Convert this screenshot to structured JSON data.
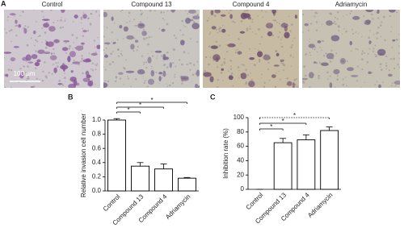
{
  "panel_labels": [
    "A",
    "B",
    "C"
  ],
  "micrographs": {
    "labels": [
      "Control",
      "Compound 13",
      "Compound 4",
      "Adriamycin"
    ],
    "scale_bar": "100 μm"
  },
  "chart_data": [
    {
      "type": "bar",
      "y_label": "Relative invasion cell number",
      "categories": [
        "Control",
        "Compound 13",
        "Compound 4",
        "Adriamycin"
      ],
      "values": [
        1.0,
        0.35,
        0.31,
        0.18
      ],
      "errors": [
        0.02,
        0.05,
        0.07,
        0.01
      ],
      "color": "#ffffff",
      "ylim": [
        0,
        1.0
      ],
      "yticks": [
        {
          "value": 0,
          "label": "0.0"
        },
        {
          "value": 0.2,
          "label": "0.2"
        },
        {
          "value": 0.4,
          "label": "0.4"
        },
        {
          "value": 0.6,
          "label": "0.6"
        },
        {
          "value": 0.8,
          "label": "0.8"
        },
        {
          "value": 1.0,
          "label": "1.0"
        }
      ],
      "significance": [
        "*",
        "*",
        "*"
      ]
    },
    {
      "type": "bar",
      "y_label": "Inhibition rate (%)",
      "categories": [
        "Control",
        "Compound 13",
        "Compound 4",
        "Adriamycin"
      ],
      "values": [
        0,
        65,
        69,
        82
      ],
      "errors": [
        0,
        6,
        7,
        5
      ],
      "color": "#ffffff",
      "ylim": [
        0,
        100
      ],
      "yticks": [
        0,
        20,
        40,
        60,
        80,
        100
      ],
      "significance": [
        "*",
        "*",
        "*"
      ]
    }
  ]
}
